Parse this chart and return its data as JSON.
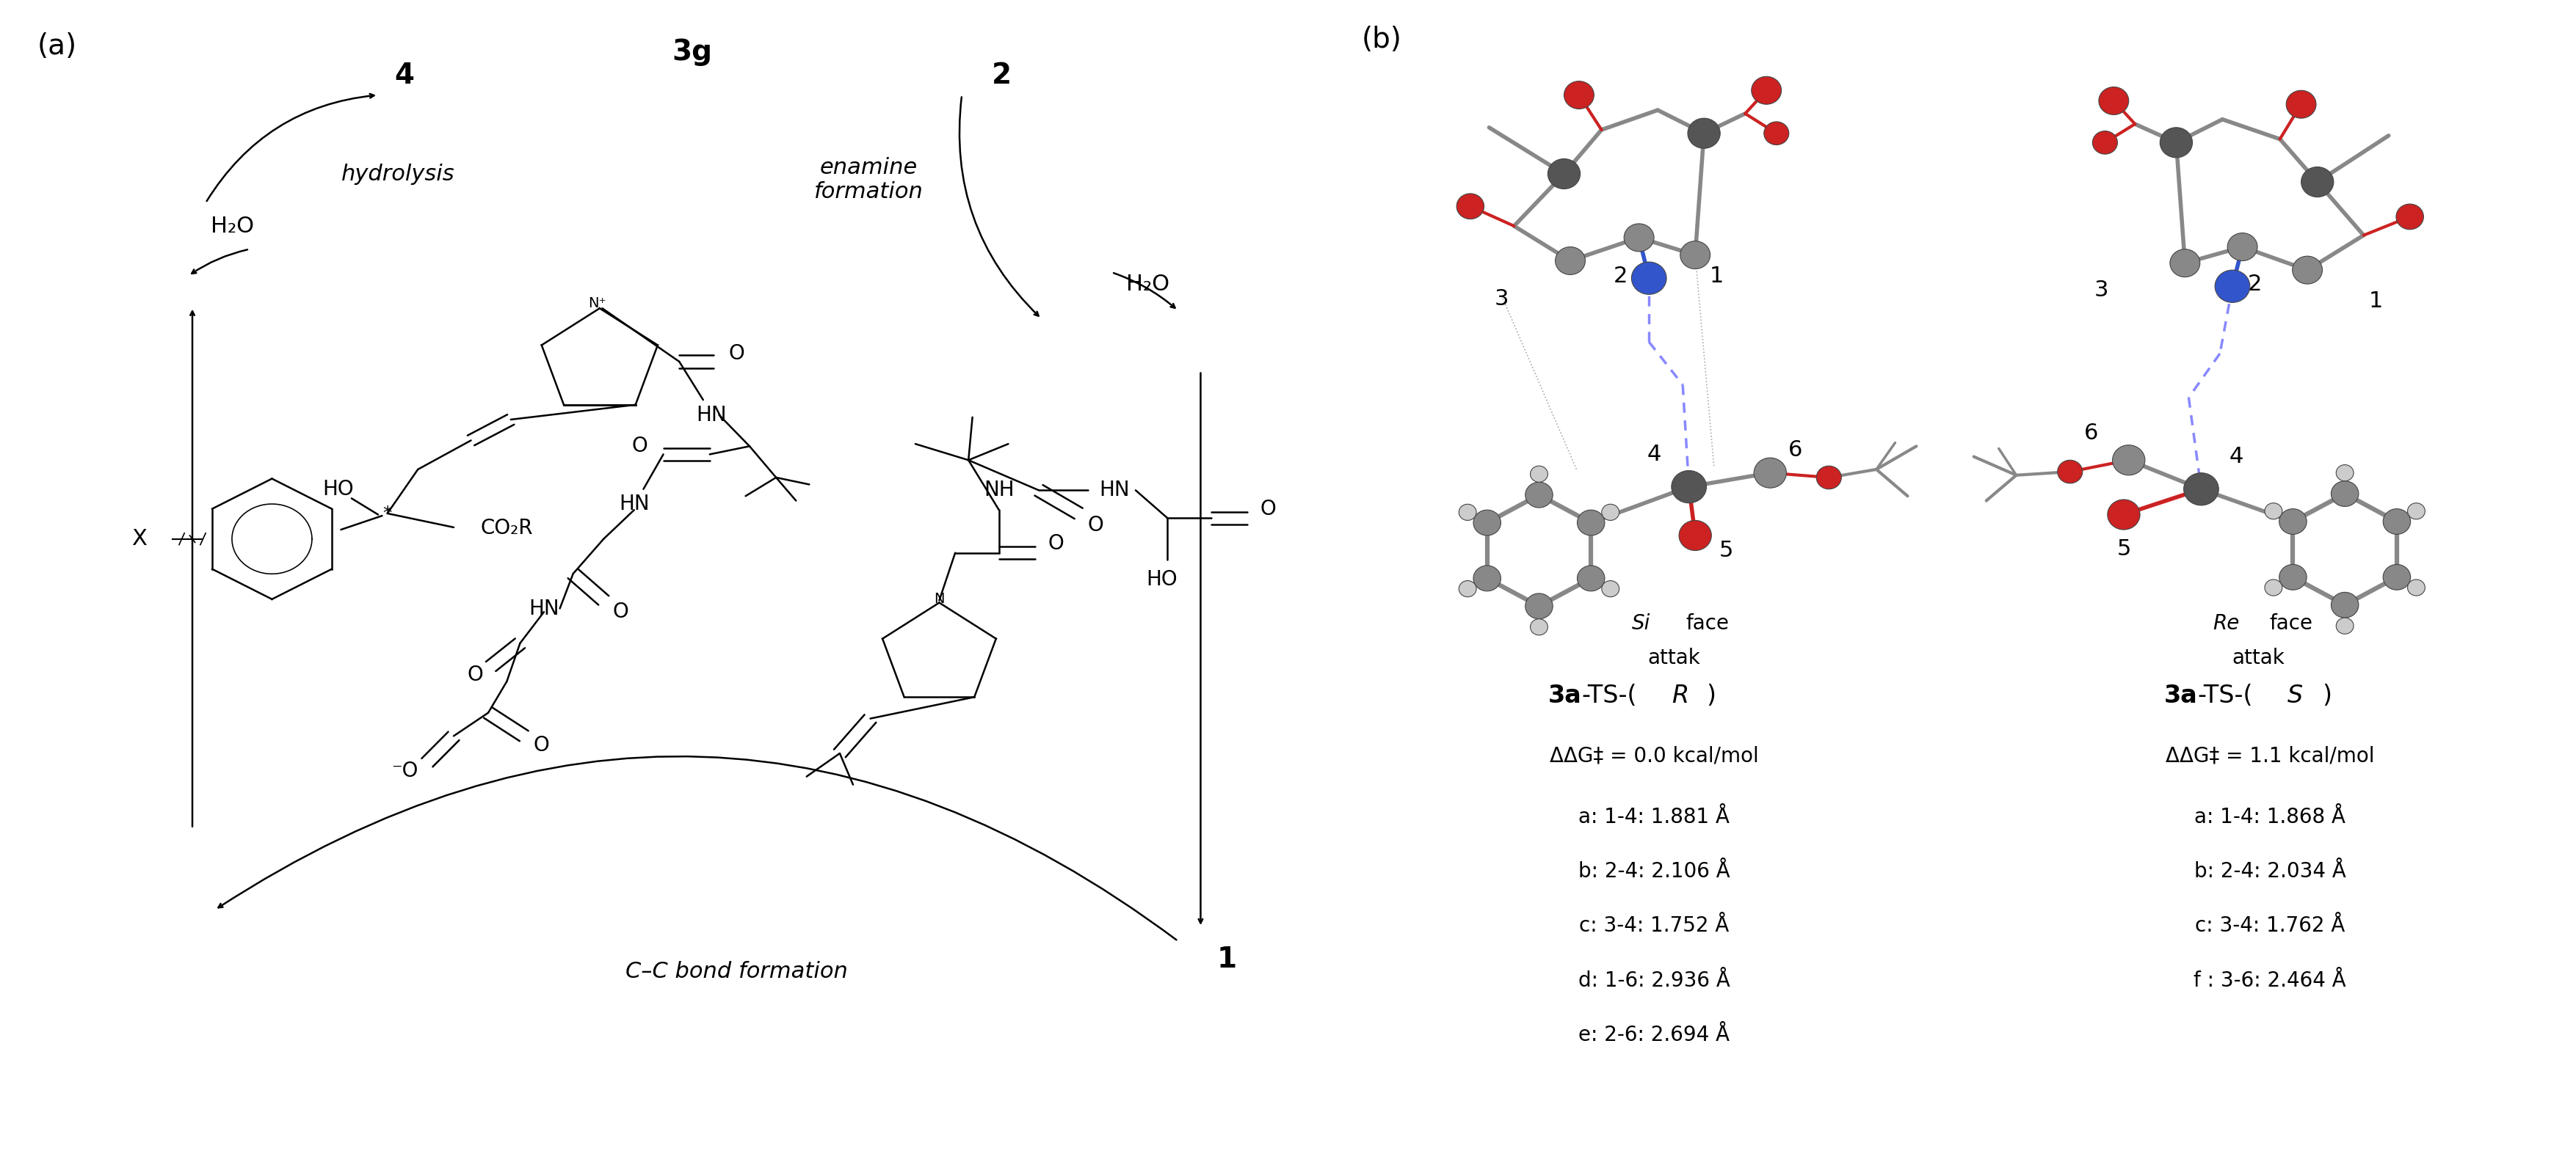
{
  "bg": "#ffffff",
  "fs_panel": 28,
  "fs_bold": 28,
  "fs_label": 24,
  "fs_text": 22,
  "fs_small": 20,
  "ts_R_distances": [
    "a: 1-4: 1.881 Å",
    "b: 2-4: 2.106 Å",
    "c: 3-4: 1.752 Å",
    "d: 1-6: 2.936 Å",
    "e: 2-6: 2.694 Å"
  ],
  "ts_S_distances": [
    "a: 1-4: 1.868 Å",
    "b: 2-4: 2.034 Å",
    "c: 3-4: 1.762 Å",
    "f : 3-6: 2.464 Å"
  ],
  "ts_R_ddG": "ΔΔG‡ = 0.0 kcal/mol",
  "ts_S_ddG": "ΔΔG‡ = 1.1 kcal/mol"
}
